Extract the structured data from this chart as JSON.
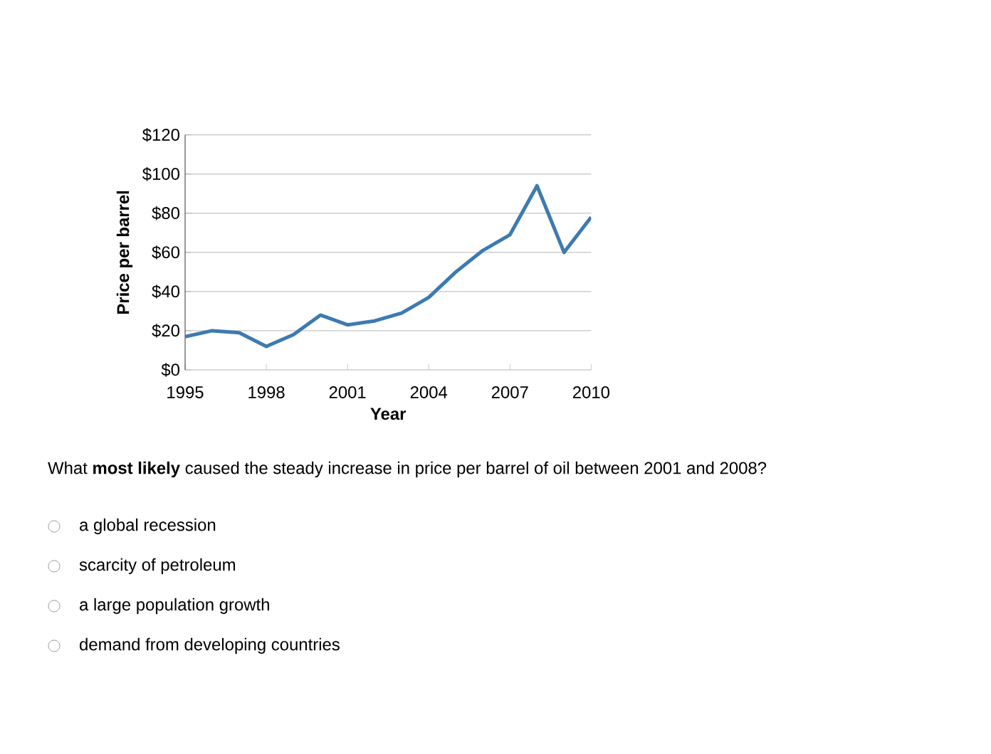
{
  "chart_data": {
    "type": "line",
    "xlabel": "Year",
    "ylabel": "Price per barrel",
    "x": [
      1995,
      1996,
      1997,
      1998,
      1999,
      2000,
      2001,
      2002,
      2003,
      2004,
      2005,
      2006,
      2007,
      2008,
      2009,
      2010
    ],
    "series": [
      {
        "color": "#3d7ab0",
        "values": [
          17,
          20,
          19,
          12,
          18,
          28,
          23,
          25,
          29,
          37,
          50,
          61,
          69,
          94,
          60,
          78
        ]
      }
    ],
    "xlim": [
      1995,
      2010
    ],
    "xticks": [
      1995,
      1998,
      2001,
      2004,
      2007,
      2010
    ],
    "ylim": [
      0,
      120
    ],
    "yticks": [
      {
        "value": 0,
        "label": "$0"
      },
      {
        "value": 20,
        "label": "$20"
      },
      {
        "value": 40,
        "label": "$40"
      },
      {
        "value": 60,
        "label": "$60"
      },
      {
        "value": 80,
        "label": "$80"
      },
      {
        "value": 100,
        "label": "$100"
      },
      {
        "value": 120,
        "label": "$120"
      }
    ],
    "grid": "y",
    "marker": "none",
    "line_style": "solid",
    "annotations": [
      "What **most likely** caused the steady increase in price per barrel of oil between 2001 and 2008?",
      "a global recession",
      "scarcity of petroleum",
      "a large population growth",
      "demand from developing countries"
    ]
  }
}
